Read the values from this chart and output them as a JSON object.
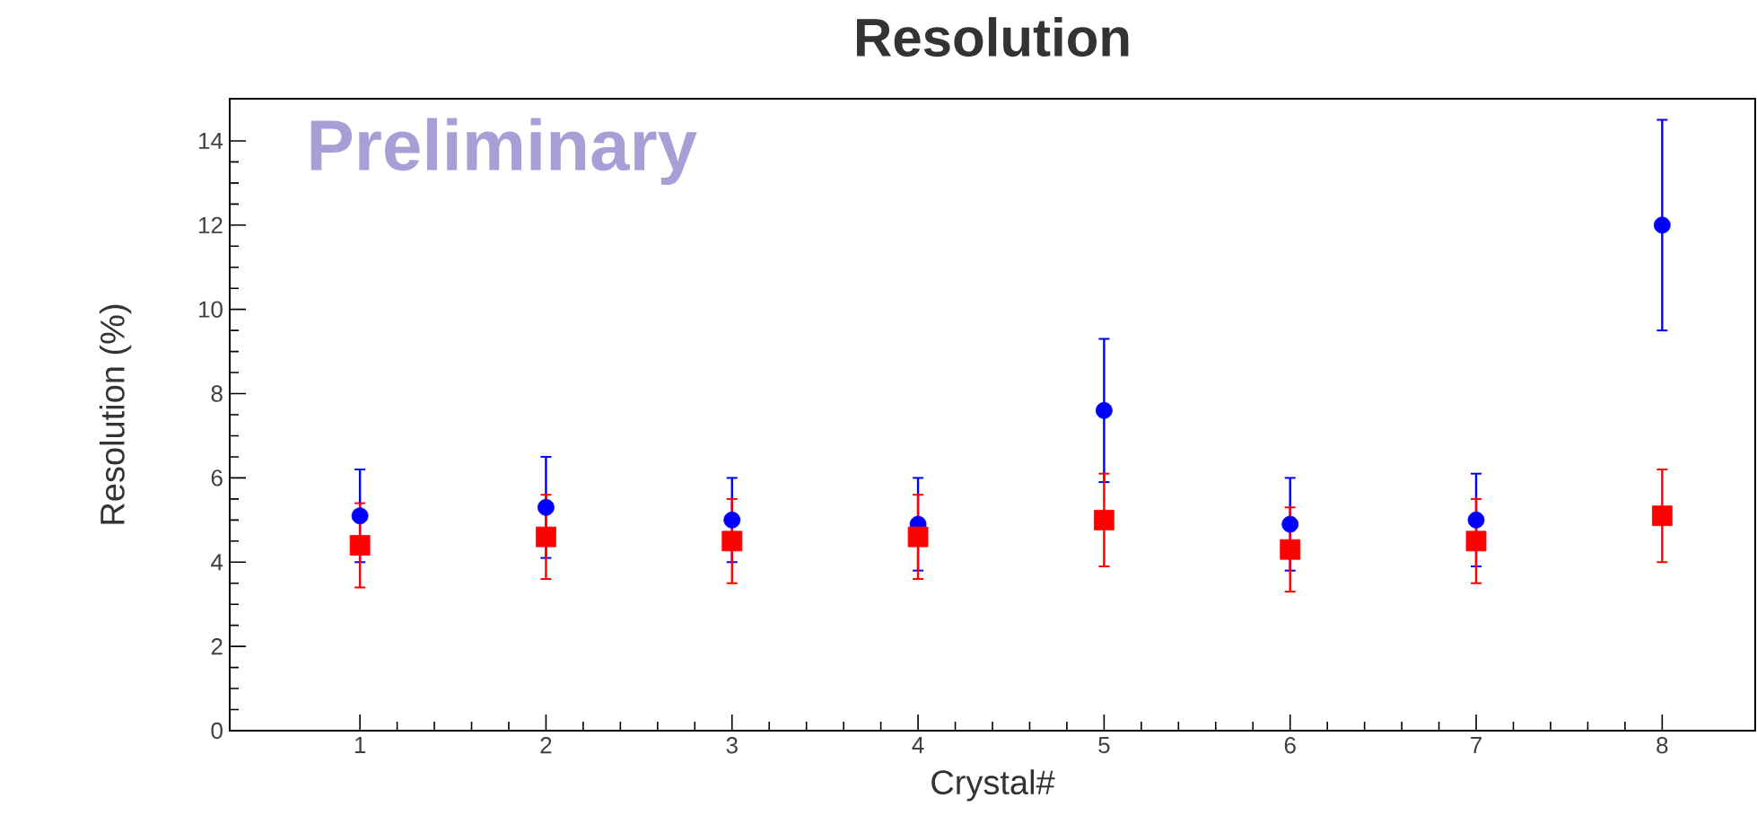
{
  "chart_data": {
    "type": "scatter",
    "title": "Resolution",
    "xlabel": "Crystal#",
    "ylabel": "Resolution (%)",
    "annotations": [
      "Preliminary"
    ],
    "x": [
      1,
      2,
      3,
      4,
      5,
      6,
      7,
      8
    ],
    "series": [
      {
        "color": "#0000ff",
        "marker": "circle",
        "values": [
          5.1,
          5.3,
          5.0,
          4.9,
          7.6,
          4.9,
          5.0,
          12.0
        ],
        "errors": [
          1.1,
          1.2,
          1.0,
          1.1,
          1.7,
          1.1,
          1.1,
          2.5
        ]
      },
      {
        "color": "#ff0000",
        "marker": "square",
        "values": [
          4.4,
          4.6,
          4.5,
          4.6,
          5.0,
          4.3,
          4.5,
          5.1
        ],
        "errors": [
          1.0,
          1.0,
          1.0,
          1.0,
          1.1,
          1.0,
          1.0,
          1.1
        ]
      }
    ],
    "xlim": [
      0.3,
      8.5
    ],
    "ylim": [
      0,
      15
    ],
    "xticks": [
      1,
      2,
      3,
      4,
      5,
      6,
      7,
      8
    ],
    "yticks": [
      0,
      2,
      4,
      6,
      8,
      10,
      12,
      14
    ],
    "grid": false
  }
}
